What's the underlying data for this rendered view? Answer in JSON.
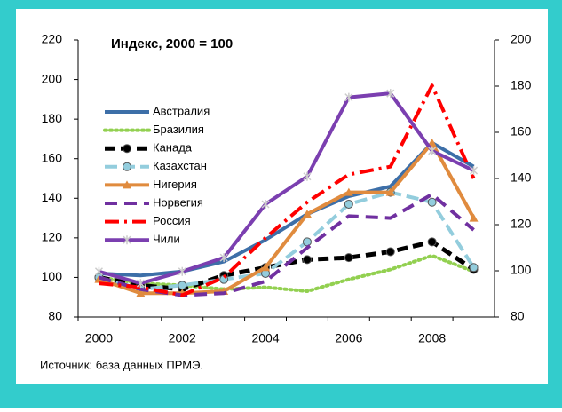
{
  "chart_data": {
    "type": "line",
    "title": "Индекс, 2000 = 100",
    "note": "Источник:  база данных ПРМЭ.",
    "categories": [
      "2000",
      null,
      "2002",
      null,
      "2004",
      null,
      "2006",
      null,
      "2008",
      null
    ],
    "ylim": [
      80,
      220
    ],
    "yticks": [
      80,
      100,
      120,
      140,
      160,
      180,
      200,
      220
    ],
    "y2lim": [
      80,
      200
    ],
    "y2ticks": [
      80,
      100,
      120,
      140,
      160,
      180,
      200
    ],
    "series": [
      {
        "name": "Австралия",
        "color": "#3d6fa8",
        "values": [
          102,
          101,
          103,
          108,
          119,
          132,
          141,
          146,
          168,
          156
        ]
      },
      {
        "name": "Бразилия",
        "color": "#92d050",
        "values": [
          100,
          97,
          96,
          94,
          95,
          93,
          99,
          104,
          111,
          103
        ]
      },
      {
        "name": "Канада",
        "color": "#000000",
        "values": [
          100,
          96,
          94,
          101,
          105,
          109,
          110,
          113,
          118,
          104
        ]
      },
      {
        "name": "Казахстан",
        "color": "#93cddd",
        "values": [
          100,
          94,
          96,
          99,
          102,
          118,
          137,
          143,
          138,
          105
        ]
      },
      {
        "name": "Нигерия",
        "color": "#e08b3e",
        "values": [
          99,
          92,
          92,
          93,
          105,
          132,
          143,
          143,
          168,
          130
        ]
      },
      {
        "name": "Норвегия",
        "color": "#7030a0",
        "values": [
          100,
          94,
          91,
          92,
          98,
          115,
          131,
          130,
          142,
          124
        ]
      },
      {
        "name": "Россия",
        "color": "#ff0000",
        "values": [
          97,
          95,
          91,
          100,
          120,
          138,
          152,
          156,
          197,
          150
        ]
      },
      {
        "name": "Чили",
        "color": "#7b3fb0",
        "values": [
          103,
          97,
          103,
          110,
          137,
          151,
          191,
          193,
          164,
          154
        ]
      }
    ]
  }
}
